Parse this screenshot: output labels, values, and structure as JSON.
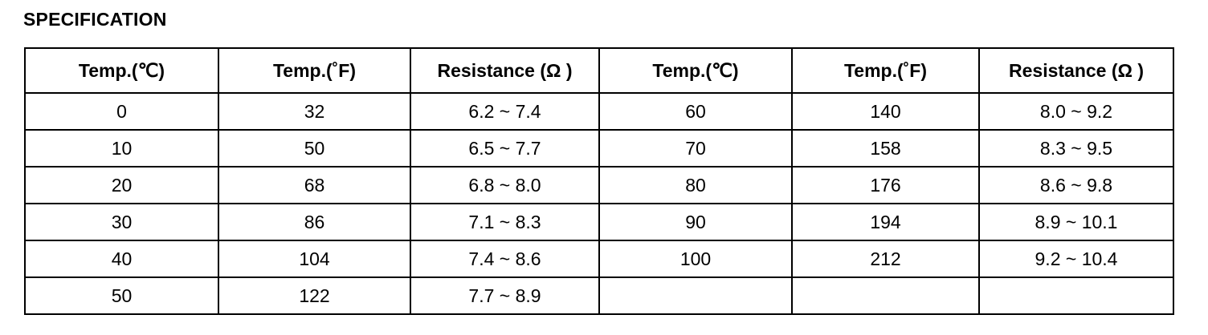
{
  "heading": "SPECIFICATION",
  "headers": [
    "Temp.(℃)",
    "Temp.(˚F)",
    "Resistance (Ω )",
    "Temp.(℃)",
    "Temp.(˚F)",
    "Resistance (Ω )"
  ],
  "rows": [
    [
      "0",
      "32",
      "6.2 ~ 7.4",
      "60",
      "140",
      "8.0 ~ 9.2"
    ],
    [
      "10",
      "50",
      "6.5 ~ 7.7",
      "70",
      "158",
      "8.3 ~ 9.5"
    ],
    [
      "20",
      "68",
      "6.8 ~ 8.0",
      "80",
      "176",
      "8.6 ~ 9.8"
    ],
    [
      "30",
      "86",
      "7.1 ~ 8.3",
      "90",
      "194",
      "8.9 ~ 10.1"
    ],
    [
      "40",
      "104",
      "7.4 ~ 8.6",
      "100",
      "212",
      "9.2 ~ 10.4"
    ],
    [
      "50",
      "122",
      "7.7 ~ 8.9",
      "",
      "",
      ""
    ]
  ]
}
